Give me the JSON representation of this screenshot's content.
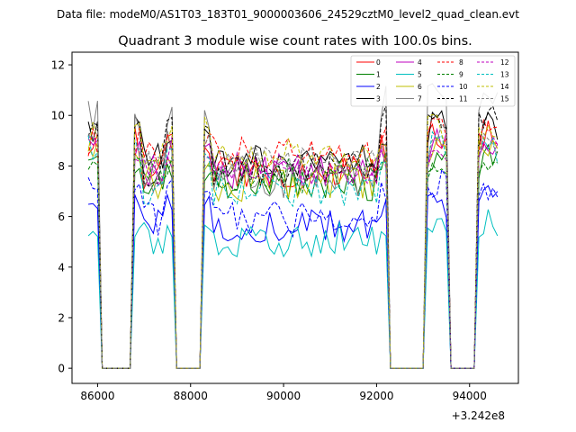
{
  "chart_data": {
    "type": "line",
    "suptitle": "Data file: modeM0/AS1T03_183T01_9000003606_24529cztM0_level2_quad_clean.evt",
    "title": "Quadrant 3 module wise count rates with 100.0s bins.",
    "xlabel": "",
    "ylabel": "",
    "x_offset_label": "+3.242e8",
    "xlim": [
      85450,
      95050
    ],
    "ylim": [
      -0.6,
      12.5
    ],
    "xticks": [
      86000,
      88000,
      90000,
      92000,
      94000
    ],
    "xtick_labels": [
      "86000",
      "88000",
      "90000",
      "92000",
      "94000"
    ],
    "yticks": [
      0,
      2,
      4,
      6,
      8,
      10,
      12
    ],
    "ytick_labels": [
      "0",
      "2",
      "4",
      "6",
      "8",
      "10",
      "12"
    ],
    "grid": false,
    "legend_position": "top-right",
    "gti_segments": [
      {
        "start": 85800,
        "end": 86000
      },
      {
        "start": 86800,
        "end": 87600
      },
      {
        "start": 88300,
        "end": 92200
      },
      {
        "start": 93100,
        "end": 93500
      },
      {
        "start": 94200,
        "end": 94600
      }
    ],
    "series": [
      {
        "name": "0",
        "color": "#ff0000",
        "dash": "solid",
        "level": 7.8,
        "hi": 9.6
      },
      {
        "name": "1",
        "color": "#008000",
        "dash": "solid",
        "level": 7.3,
        "hi": 8.6
      },
      {
        "name": "2",
        "color": "#0000ff",
        "dash": "solid",
        "level": 5.6,
        "hi": 7.0
      },
      {
        "name": "3",
        "color": "#000000",
        "dash": "solid",
        "level": 8.2,
        "hi": 10.0
      },
      {
        "name": "4",
        "color": "#bf00bf",
        "dash": "solid",
        "level": 7.7,
        "hi": 9.3
      },
      {
        "name": "5",
        "color": "#00bfbf",
        "dash": "solid",
        "level": 5.1,
        "hi": 6.0
      },
      {
        "name": "6",
        "color": "#bfbf00",
        "dash": "solid",
        "level": 7.3,
        "hi": 9.2
      },
      {
        "name": "7",
        "color": "#808080",
        "dash": "solid",
        "level": 7.4,
        "hi": 11.6
      },
      {
        "name": "8",
        "color": "#ff0000",
        "dash": "dashed",
        "level": 8.5,
        "hi": 9.8
      },
      {
        "name": "9",
        "color": "#008000",
        "dash": "dashed",
        "level": 7.6,
        "hi": 8.4
      },
      {
        "name": "10",
        "color": "#0000ff",
        "dash": "dashed",
        "level": 5.9,
        "hi": 7.6
      },
      {
        "name": "11",
        "color": "#000000",
        "dash": "dashed",
        "level": 7.9,
        "hi": 10.5
      },
      {
        "name": "12",
        "color": "#bf00bf",
        "dash": "dashed",
        "level": 7.9,
        "hi": 9.2
      },
      {
        "name": "13",
        "color": "#00bfbf",
        "dash": "dashed",
        "level": 7.1,
        "hi": 9.3
      },
      {
        "name": "14",
        "color": "#bfbf00",
        "dash": "dashed",
        "level": 8.4,
        "hi": 10.0
      },
      {
        "name": "15",
        "color": "#808080",
        "dash": "dashed",
        "level": 8.1,
        "hi": 9.6
      }
    ]
  }
}
